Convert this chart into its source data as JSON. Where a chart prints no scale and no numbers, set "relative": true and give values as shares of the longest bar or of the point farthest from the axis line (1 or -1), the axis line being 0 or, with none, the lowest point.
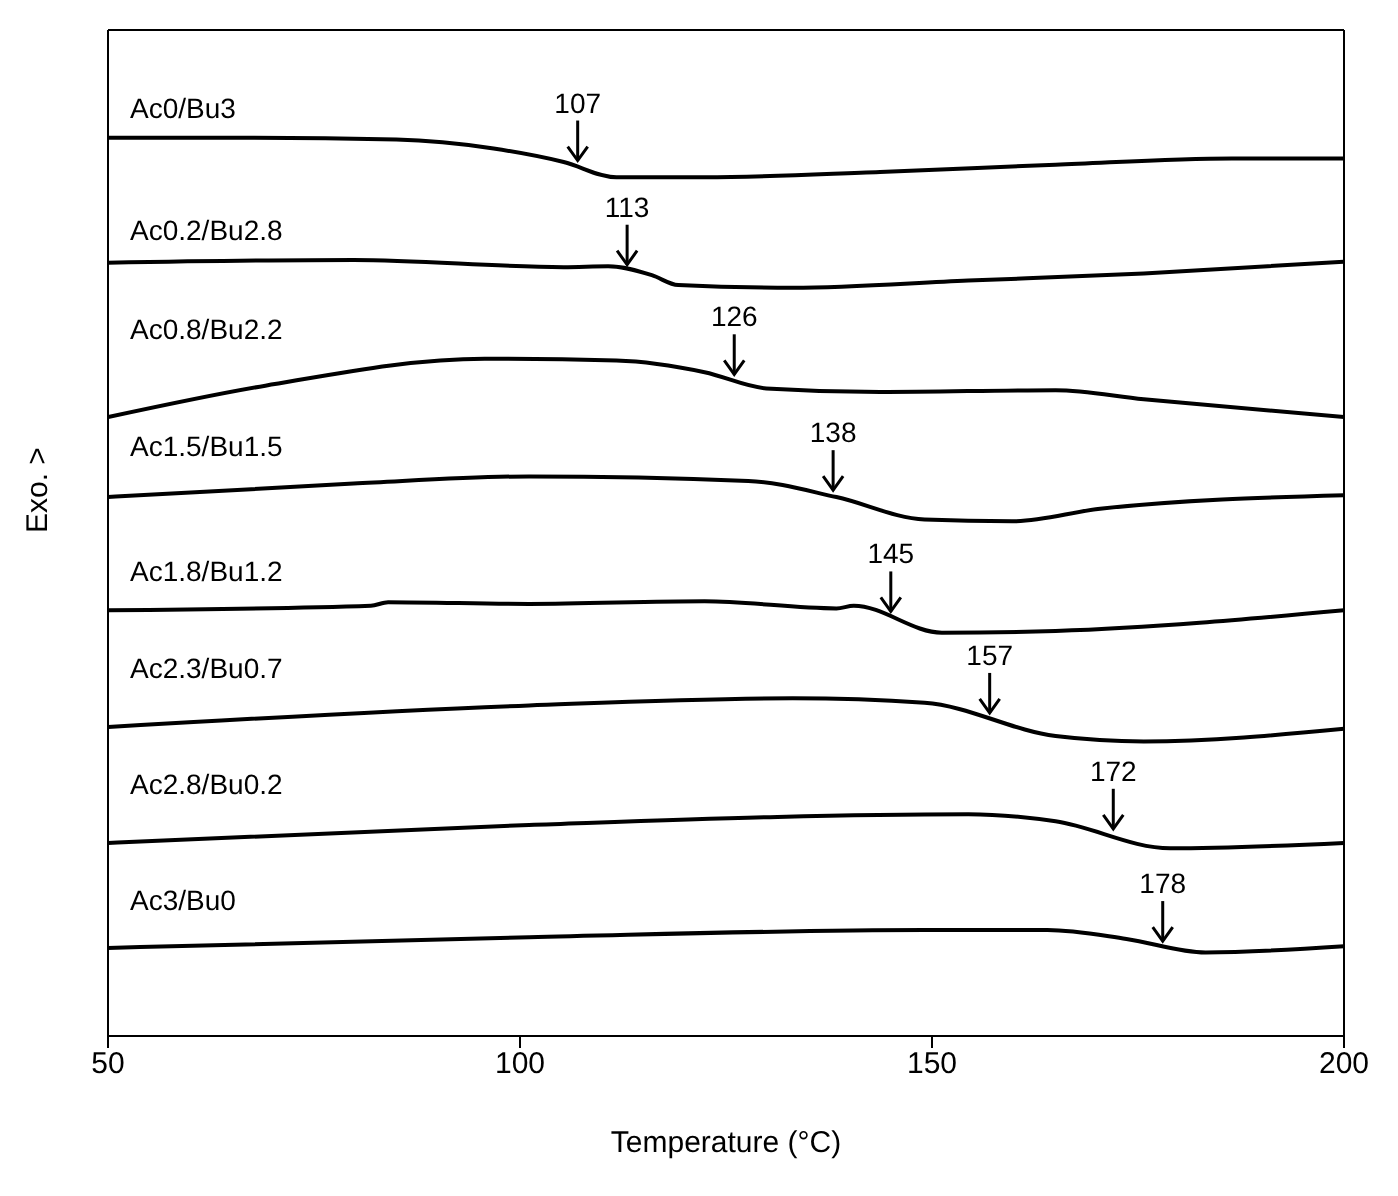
{
  "chart_data": {
    "type": "line",
    "xlabel": "Temperature (°C)",
    "ylabel": "Exo. >",
    "relative": true,
    "xlim": [
      50,
      200
    ],
    "xticks": [
      50,
      100,
      150,
      200
    ],
    "series": [
      {
        "name": "Ac0/Bu3",
        "color": "#000000",
        "x": [
          50,
          63.8,
          85,
          96.8,
          105.3,
          111.7,
          122.4,
          143.7,
          165,
          186.4,
          200
        ],
        "values": [
          1.0,
          1.0,
          0.998,
          0.988,
          0.973,
          0.956,
          0.956,
          0.962,
          0.97,
          0.977,
          0.977
        ]
      },
      {
        "name": "Ac0.2/Bu2.8",
        "color": "#000000",
        "x": [
          50,
          79.8,
          105.3,
          110.7,
          116,
          119.2,
          133.1,
          154.4,
          175.7,
          200
        ],
        "values": [
          0.861,
          0.864,
          0.856,
          0.857,
          0.847,
          0.836,
          0.833,
          0.841,
          0.849,
          0.862
        ]
      },
      {
        "name": "Ac0.8/Bu2.2",
        "color": "#000000",
        "x": [
          50,
          69.1,
          95.7,
          111.7,
          122.4,
          129.9,
          143.7,
          165,
          175.7,
          200
        ],
        "values": [
          0.689,
          0.724,
          0.754,
          0.752,
          0.739,
          0.721,
          0.717,
          0.719,
          0.709,
          0.689
        ]
      },
      {
        "name": "Ac1.5/Bu1.5",
        "color": "#000000",
        "x": [
          50,
          79.8,
          101.1,
          127.7,
          138.4,
          149.1,
          159.7,
          170.4,
          200
        ],
        "values": [
          0.6,
          0.615,
          0.623,
          0.618,
          0.6,
          0.575,
          0.573,
          0.587,
          0.602
        ]
      },
      {
        "name": "Ac1.8/Bu1.2",
        "color": "#000000",
        "x": [
          50,
          81.9,
          84,
          101.1,
          122.4,
          138.4,
          140.5,
          151.2,
          165,
          200
        ],
        "values": [
          0.474,
          0.479,
          0.483,
          0.481,
          0.484,
          0.476,
          0.479,
          0.449,
          0.451,
          0.474
        ]
      },
      {
        "name": "Ac2.3/Bu0.7",
        "color": "#000000",
        "x": [
          50,
          101.1,
          133.1,
          149.1,
          165,
          175.7,
          200
        ],
        "values": [
          0.344,
          0.368,
          0.376,
          0.371,
          0.334,
          0.328,
          0.342
        ]
      },
      {
        "name": "Ac2.8/Bu0.2",
        "color": "#000000",
        "x": [
          50,
          101.1,
          154.4,
          165,
          178.9,
          200
        ],
        "values": [
          0.215,
          0.235,
          0.247,
          0.239,
          0.209,
          0.215
        ]
      },
      {
        "name": "Ac3/Bu0",
        "color": "#000000",
        "x": [
          50,
          101.1,
          149.1,
          164,
          173.6,
          183.2,
          200
        ],
        "values": [
          0.098,
          0.11,
          0.118,
          0.118,
          0.108,
          0.093,
          0.1
        ]
      }
    ],
    "annotations": [
      {
        "text": "107",
        "x": 107,
        "y": 0.968
      },
      {
        "text": "113",
        "x": 113,
        "y": 0.852
      },
      {
        "text": "126",
        "x": 126,
        "y": 0.73
      },
      {
        "text": "138",
        "x": 138,
        "y": 0.601
      },
      {
        "text": "145",
        "x": 145,
        "y": 0.466
      },
      {
        "text": "157",
        "x": 157,
        "y": 0.353
      },
      {
        "text": "172",
        "x": 172,
        "y": 0.224
      },
      {
        "text": "178",
        "x": 178,
        "y": 0.099
      }
    ]
  }
}
